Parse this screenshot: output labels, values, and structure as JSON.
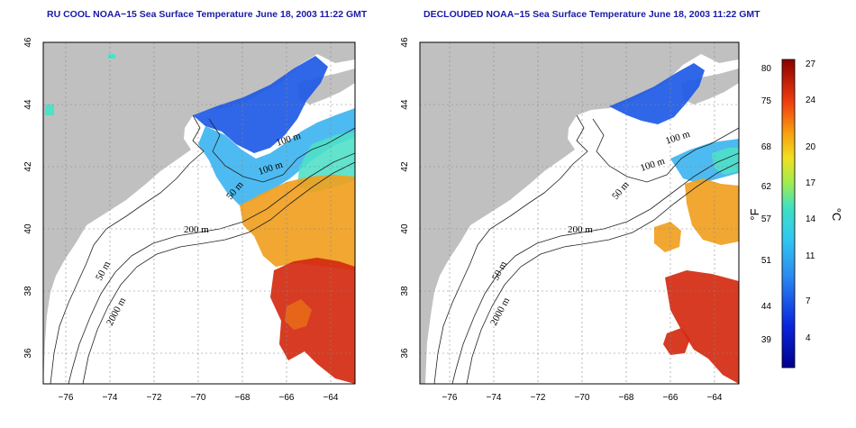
{
  "panels": [
    {
      "title": "RU COOL NOAA−15 Sea Surface Temperature June 18, 2003 11:22 GMT",
      "x_ticks": [
        "−76",
        "−74",
        "−72",
        "−70",
        "−68",
        "−66",
        "−64"
      ],
      "y_ticks": [
        "46",
        "44",
        "42",
        "40",
        "38",
        "36"
      ],
      "isobaths": [
        "100 m",
        "100 m",
        "50 m",
        "200 m",
        "50 m",
        "2000 m"
      ]
    },
    {
      "title": "DECLOUDED NOAA−15 Sea Surface Temperature June 18, 2003 11:22 GMT",
      "x_ticks": [
        "−76",
        "−74",
        "−72",
        "−70",
        "−68",
        "−66",
        "−64"
      ],
      "y_ticks": [
        "46",
        "44",
        "42",
        "40",
        "38",
        "36"
      ],
      "isobaths": [
        "100 m",
        "100 m",
        "50 m",
        "200 m",
        "50 m",
        "2000 m"
      ]
    }
  ],
  "colorbar": {
    "fahrenheit_label": "°F",
    "celsius_label": "°C",
    "fahrenheit_ticks": [
      "80",
      "75",
      "68",
      "62",
      "57",
      "51",
      "44",
      "39"
    ],
    "celsius_ticks": [
      "27",
      "24",
      "20",
      "17",
      "14",
      "11",
      "7",
      "4"
    ]
  },
  "colors": {
    "land": "#c0c0c0",
    "title": "#1a1aa8",
    "cold": "#1e5ae6",
    "cool": "#3ab4f0",
    "mild": "#50e0c8",
    "warm": "#f0a020",
    "hot": "#d42a10"
  }
}
